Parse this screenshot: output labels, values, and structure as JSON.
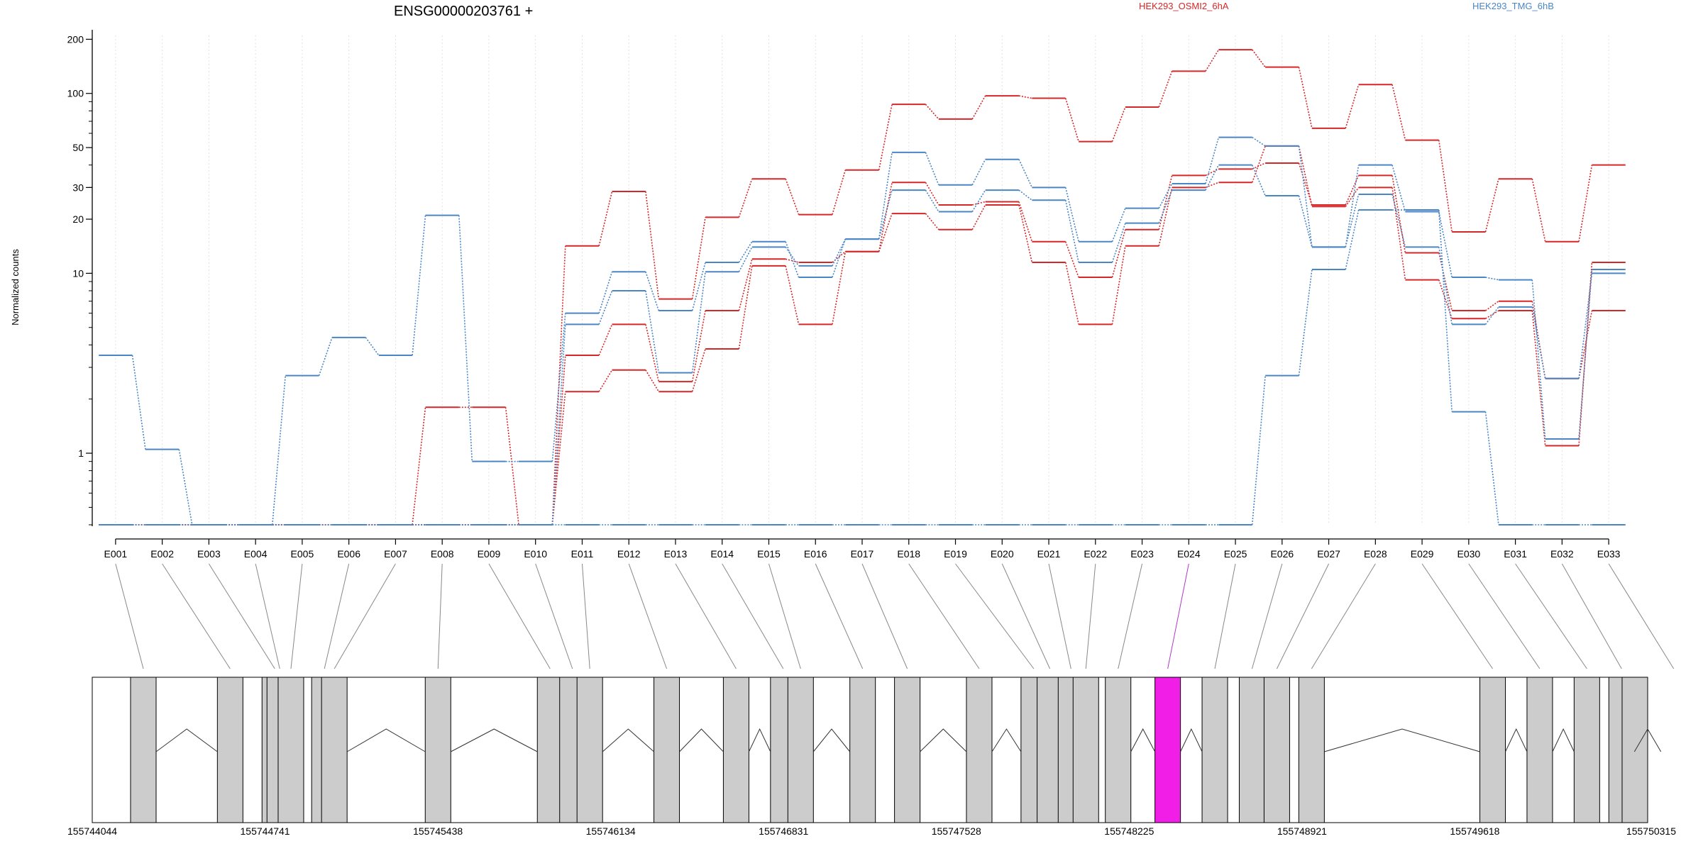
{
  "chart_data": {
    "type": "line",
    "title": "ENSG00000203761 +",
    "ylabel": "Normalized counts",
    "yscale": "log",
    "ylim": [
      0.4,
      210
    ],
    "yticks": [
      1,
      10,
      20,
      30,
      50,
      100,
      200
    ],
    "legend": [
      "HEK293_OSMI2_6hA",
      "HEK293_TMG_6hB"
    ],
    "legend_colors": [
      "#d62728",
      "#4a86c5"
    ],
    "categories": [
      "E001",
      "E002",
      "E003",
      "E004",
      "E005",
      "E006",
      "E007",
      "E008",
      "E009",
      "E010",
      "E011",
      "E012",
      "E013",
      "E014",
      "E015",
      "E016",
      "E017",
      "E018",
      "E019",
      "E020",
      "E021",
      "E022",
      "E023",
      "E024",
      "E025",
      "E026",
      "E027",
      "E028",
      "E029",
      "E030",
      "E031",
      "E032",
      "E033"
    ],
    "highlighted_exon": "E024",
    "series": [
      {
        "color": "#d62728",
        "values": [
          0.4,
          0.4,
          0.4,
          0.4,
          0.4,
          0.4,
          0.4,
          0.4,
          0.4,
          0.4,
          14.2,
          28.5,
          7.2,
          20.5,
          33.5,
          21.2,
          37.5,
          87,
          72,
          97,
          94,
          54,
          84,
          133,
          175,
          140,
          64,
          112,
          55,
          17,
          33.5,
          15,
          40
        ]
      },
      {
        "color": "#d62728",
        "values": [
          0.4,
          0.4,
          0.4,
          0.4,
          0.4,
          0.4,
          0.4,
          1.8,
          1.8,
          0.4,
          3.5,
          5.2,
          2.5,
          6.2,
          12,
          11.5,
          13.2,
          32,
          24,
          25,
          15,
          9.5,
          17.5,
          35,
          38,
          41,
          24,
          35,
          13,
          6.2,
          7,
          2.6,
          6.2
        ]
      },
      {
        "color": "#d62728",
        "values": [
          0.4,
          0.4,
          0.4,
          0.4,
          0.4,
          0.4,
          0.4,
          0.4,
          0.4,
          0.4,
          2.2,
          2.9,
          2.2,
          3.8,
          11,
          5.2,
          13.2,
          21.5,
          17.5,
          24,
          11.5,
          5.2,
          14.2,
          30,
          32,
          51,
          23.5,
          30,
          9.2,
          5.6,
          6.2,
          1.1,
          11.5
        ]
      },
      {
        "color": "#4a86c5",
        "values": [
          3.5,
          1.05,
          0.4,
          0.4,
          2.7,
          4.4,
          3.5,
          21,
          0.9,
          0.9,
          6,
          10.2,
          6.2,
          11.5,
          15,
          9.5,
          15.5,
          47,
          31,
          43,
          30,
          15,
          23,
          31.5,
          57,
          51,
          14,
          40,
          22,
          9.5,
          9.2,
          1.2,
          10.5
        ]
      },
      {
        "color": "#4a86c5",
        "values": [
          0.4,
          0.4,
          0.4,
          0.4,
          0.4,
          0.4,
          0.4,
          0.4,
          0.4,
          0.4,
          5.2,
          8,
          2.8,
          10.2,
          14,
          11,
          15.5,
          29,
          22,
          29,
          25.5,
          11.5,
          19,
          29,
          40,
          27,
          14,
          27.5,
          14,
          5.2,
          6.5,
          2.6,
          10
        ]
      },
      {
        "color": "#4a86c5",
        "values": [
          0.4,
          0.4,
          0.4,
          0.4,
          0.4,
          0.4,
          0.4,
          0.4,
          0.4,
          0.4,
          0.4,
          0.4,
          0.4,
          0.4,
          0.4,
          0.4,
          0.4,
          0.4,
          0.4,
          0.4,
          0.4,
          0.4,
          0.4,
          0.4,
          0.4,
          2.7,
          10.5,
          22.5,
          22.5,
          1.7,
          0.4,
          0.4,
          0.4
        ]
      }
    ],
    "genomic_axis_ticks": [
      "155744044",
      "155744741",
      "155745438",
      "155746134",
      "155746831",
      "155747528",
      "155748225",
      "155748921",
      "155749618",
      "155750315"
    ],
    "genomic_range": [
      155744044,
      155750315
    ],
    "exon_positions": [
      155744250,
      155744600,
      155744780,
      155744800,
      155744845,
      155744980,
      155745020,
      155745438,
      155745890,
      155745980,
      155746050,
      155746360,
      155746640,
      155746830,
      155746900,
      155747150,
      155747330,
      155747620,
      155747840,
      155747905,
      155747990,
      155748050,
      155748180,
      155748380,
      155748570,
      155748720,
      155748820,
      155748960,
      155749690,
      155749880,
      155750070,
      155750210,
      155750420
    ]
  }
}
